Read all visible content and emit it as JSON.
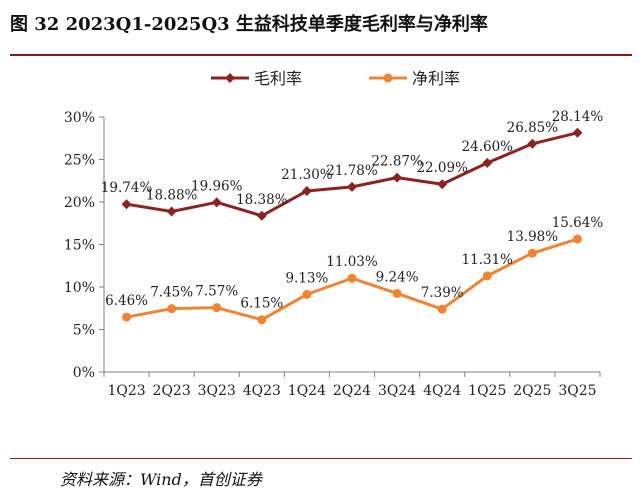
{
  "title": "图  32 2023Q1-2025Q3 生益科技单季度毛利率与净利率",
  "source": "资料来源：Wind，首创证券",
  "chart_data": {
    "type": "line",
    "title": "图  32 2023Q1-2025Q3 生益科技单季度毛利率与净利率",
    "xlabel": "",
    "ylabel": "",
    "categories": [
      "1Q23",
      "2Q23",
      "3Q23",
      "4Q23",
      "1Q24",
      "2Q24",
      "3Q24",
      "4Q24",
      "1Q25",
      "2Q25",
      "3Q25"
    ],
    "ylim": [
      0,
      30
    ],
    "yticks": [
      0,
      5,
      10,
      15,
      20,
      25,
      30
    ],
    "ytick_labels": [
      "0%",
      "5%",
      "10%",
      "15%",
      "20%",
      "25%",
      "30%"
    ],
    "legend_position": "top",
    "series": [
      {
        "name": "毛利率",
        "color": "#8b2323",
        "marker": "diamond",
        "values": [
          19.74,
          18.88,
          19.96,
          18.38,
          21.3,
          21.78,
          22.87,
          22.09,
          24.6,
          26.85,
          28.14
        ],
        "labels": [
          "19.74%",
          "18.88%",
          "19.96%",
          "18.38%",
          "21.30%",
          "21.78%",
          "22.87%",
          "22.09%",
          "24.60%",
          "26.85%",
          "28.14%"
        ]
      },
      {
        "name": "净利率",
        "color": "#ee8434",
        "marker": "circle",
        "values": [
          6.46,
          7.45,
          7.57,
          6.15,
          9.13,
          11.03,
          9.24,
          7.39,
          11.31,
          13.98,
          15.64
        ],
        "labels": [
          "6.46%",
          "7.45%",
          "7.57%",
          "6.15%",
          "9.13%",
          "11.03%",
          "9.24%",
          "7.39%",
          "11.31%",
          "13.98%",
          "15.64%"
        ]
      }
    ]
  }
}
